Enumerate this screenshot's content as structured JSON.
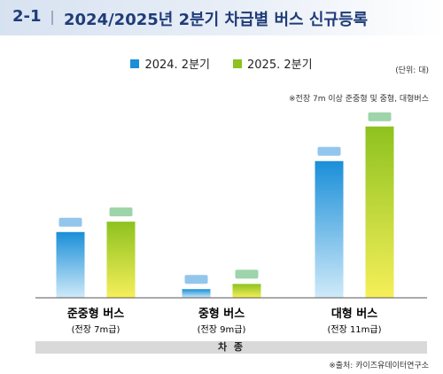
{
  "header": {
    "fig_no": "2-1",
    "title": "2024/2025년 2분기 차급별 버스 신규등록"
  },
  "legend": [
    {
      "label": "2024. 2분기",
      "color": "#1a8fd8"
    },
    {
      "label": "2025. 2분기",
      "color": "#8dc21f"
    }
  ],
  "unit": "(단위: 대)",
  "note": "※전장 7m 이상 준중형 및 중형, 대형버스",
  "x_axis_title": "차 종",
  "source": "※출처: 카이즈유데이터연구소",
  "chart_data": {
    "type": "bar",
    "categories": [
      {
        "name": "준중형 버스",
        "sub": "(전장 7m급)"
      },
      {
        "name": "중형 버스",
        "sub": "(전장 9m급)"
      },
      {
        "name": "대형 버스",
        "sub": "(전장 11m급)"
      }
    ],
    "series": [
      {
        "name": "2024. 2분기",
        "values": [
          38,
          5,
          79
        ]
      },
      {
        "name": "2025. 2분기",
        "values": [
          44,
          8,
          99
        ]
      }
    ],
    "ylim": [
      0,
      105
    ],
    "grid": false,
    "legend_position": "top",
    "data_labels": "blurred",
    "colors": {
      "s1_top": "#1a8fd8",
      "s1_bottom": "#cfeaf9",
      "s2_top": "#8dc21f",
      "s2_bottom": "#f6ef5a",
      "label_blue": "#6fb3e6",
      "label_green": "#7cc58c"
    }
  }
}
